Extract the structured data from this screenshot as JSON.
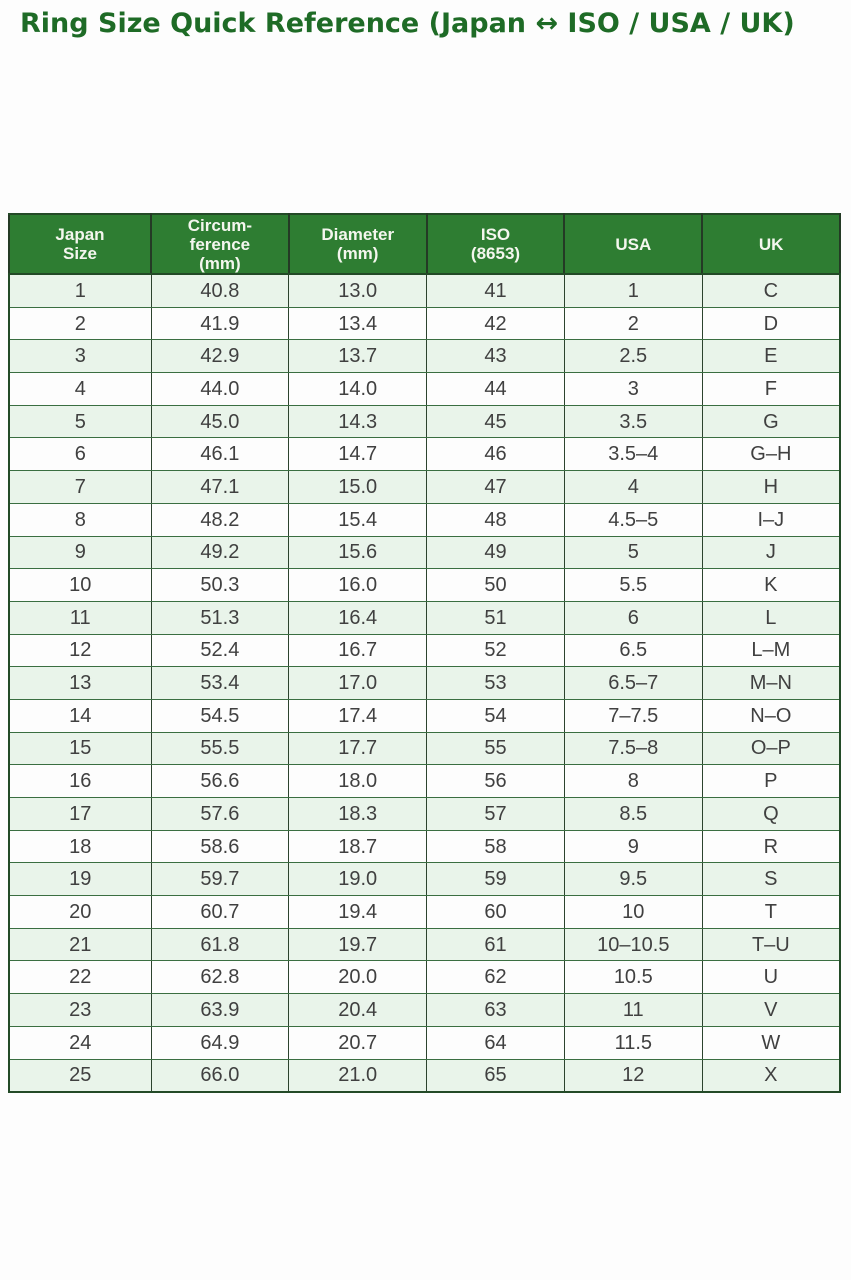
{
  "page": {
    "title": "Ring Size Quick Reference (Japan ↔ ISO / USA / UK)"
  },
  "colors": {
    "title_text": "#1e6b26",
    "header_background": "#2e7d32",
    "header_text": "#f4f6ee",
    "row_stripe_green": "#e9f4ea",
    "row_white": "#fdfdfd",
    "grid_line_green": "#3a6e41",
    "grid_line_dark": "#2c432e"
  },
  "chart_data": {
    "type": "table",
    "title": "Ring Size Quick Reference (Japan ↔ ISO / USA / UK)",
    "columns": [
      "Japan\nSize",
      "Circum-\nference\n(mm)",
      "Diameter\n(mm)",
      "ISO\n(8653)",
      "USA",
      "UK"
    ],
    "column_keys": [
      "japan-size",
      "circumference-mm",
      "diameter-mm",
      "iso-8653",
      "usa",
      "uk"
    ],
    "rows": [
      [
        "1",
        "40.8",
        "13.0",
        "41",
        "1",
        "C"
      ],
      [
        "2",
        "41.9",
        "13.4",
        "42",
        "2",
        "D"
      ],
      [
        "3",
        "42.9",
        "13.7",
        "43",
        "2.5",
        "E"
      ],
      [
        "4",
        "44.0",
        "14.0",
        "44",
        "3",
        "F"
      ],
      [
        "5",
        "45.0",
        "14.3",
        "45",
        "3.5",
        "G"
      ],
      [
        "6",
        "46.1",
        "14.7",
        "46",
        "3.5–4",
        "G–H"
      ],
      [
        "7",
        "47.1",
        "15.0",
        "47",
        "4",
        "H"
      ],
      [
        "8",
        "48.2",
        "15.4",
        "48",
        "4.5–5",
        "I–J"
      ],
      [
        "9",
        "49.2",
        "15.6",
        "49",
        "5",
        "J"
      ],
      [
        "10",
        "50.3",
        "16.0",
        "50",
        "5.5",
        "K"
      ],
      [
        "11",
        "51.3",
        "16.4",
        "51",
        "6",
        "L"
      ],
      [
        "12",
        "52.4",
        "16.7",
        "52",
        "6.5",
        "L–M"
      ],
      [
        "13",
        "53.4",
        "17.0",
        "53",
        "6.5–7",
        "M–N"
      ],
      [
        "14",
        "54.5",
        "17.4",
        "54",
        "7–7.5",
        "N–O"
      ],
      [
        "15",
        "55.5",
        "17.7",
        "55",
        "7.5–8",
        "O–P"
      ],
      [
        "16",
        "56.6",
        "18.0",
        "56",
        "8",
        "P"
      ],
      [
        "17",
        "57.6",
        "18.3",
        "57",
        "8.5",
        "Q"
      ],
      [
        "18",
        "58.6",
        "18.7",
        "58",
        "9",
        "R"
      ],
      [
        "19",
        "59.7",
        "19.0",
        "59",
        "9.5",
        "S"
      ],
      [
        "20",
        "60.7",
        "19.4",
        "60",
        "10",
        "T"
      ],
      [
        "21",
        "61.8",
        "19.7",
        "61",
        "10–10.5",
        "T–U"
      ],
      [
        "22",
        "62.8",
        "20.0",
        "62",
        "10.5",
        "U"
      ],
      [
        "23",
        "63.9",
        "20.4",
        "63",
        "11",
        "V"
      ],
      [
        "24",
        "64.9",
        "20.7",
        "64",
        "11.5",
        "W"
      ],
      [
        "25",
        "66.0",
        "21.0",
        "65",
        "12",
        "X"
      ]
    ]
  }
}
